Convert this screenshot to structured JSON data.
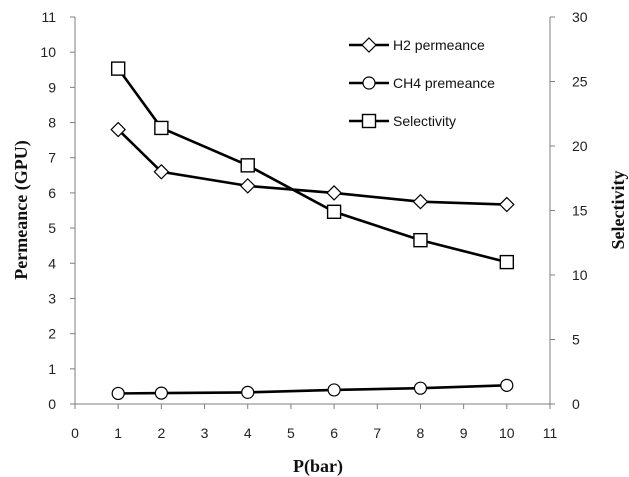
{
  "chart_data": {
    "type": "line",
    "xlabel": "P(bar)",
    "ylabel_left": "Permeance (GPU)",
    "ylabel_right": "Selectivity",
    "x_ticks": [
      "0",
      "1",
      "2",
      "3",
      "4",
      "5",
      "6",
      "7",
      "8",
      "9",
      "10",
      "11"
    ],
    "y_left_ticks": [
      "0",
      "1",
      "2",
      "3",
      "4",
      "5",
      "6",
      "7",
      "8",
      "9",
      "10",
      "11"
    ],
    "y_right_ticks": [
      "0",
      "5",
      "10",
      "15",
      "20",
      "25",
      "30"
    ],
    "xlim": [
      0,
      11
    ],
    "ylim_left": [
      0,
      11
    ],
    "ylim_right": [
      0,
      30
    ],
    "grid": false,
    "legend_position": "top-right",
    "series": [
      {
        "name": "H2 permeance",
        "axis": "left",
        "marker": "diamond",
        "x": [
          1,
          2,
          4,
          6,
          8,
          10
        ],
        "y": [
          7.8,
          6.6,
          6.2,
          6.0,
          5.75,
          5.67
        ]
      },
      {
        "name": "CH4 premeance",
        "axis": "left",
        "marker": "circle",
        "x": [
          1,
          2,
          4,
          6,
          8,
          10
        ],
        "y": [
          0.3,
          0.31,
          0.33,
          0.4,
          0.45,
          0.53
        ]
      },
      {
        "name": "Selectivity",
        "axis": "right",
        "marker": "square",
        "x": [
          1,
          2,
          4,
          6,
          8,
          10
        ],
        "y": [
          26.0,
          21.4,
          18.5,
          14.9,
          12.7,
          11.0
        ]
      }
    ]
  }
}
